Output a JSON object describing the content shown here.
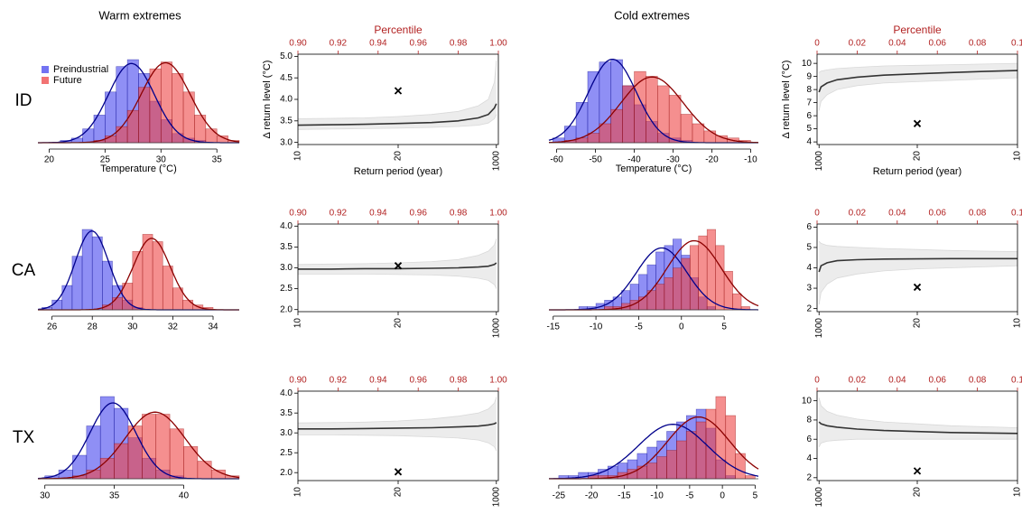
{
  "column_titles": [
    "Warm extremes",
    "Cold extremes"
  ],
  "row_labels": [
    "ID",
    "CA",
    "TX"
  ],
  "chart_data": [
    {
      "type": "histogram",
      "xlabel": "Temperature (°C)",
      "legend": "top-left",
      "bins": [
        19,
        20,
        21,
        22,
        23,
        24,
        25,
        26,
        27,
        28,
        29,
        30,
        31,
        32,
        33,
        34,
        35,
        36,
        37
      ],
      "series": [
        {
          "name": "Preindustrial",
          "color": "#4444ee",
          "line_color": "#00008b",
          "values": [
            0,
            0,
            1,
            2,
            6,
            12,
            22,
            33,
            36,
            30,
            18,
            10,
            4,
            2,
            1,
            0,
            0,
            0
          ]
        },
        {
          "name": "Future",
          "color": "#ee4444",
          "line_color": "#8b0000",
          "values": [
            0,
            0,
            0,
            0,
            0,
            1,
            3,
            7,
            14,
            24,
            32,
            35,
            30,
            22,
            12,
            6,
            3,
            1
          ]
        }
      ],
      "xlim": [
        19,
        37
      ],
      "xticks": [
        20,
        25,
        30,
        35
      ]
    },
    {
      "type": "line",
      "xscale": "upper-tail",
      "ylabel": "Δ return level (°C)",
      "xlabel": "Return period (year)",
      "x2label": "Percentile",
      "x": [
        10,
        12,
        15,
        20,
        30,
        50,
        100,
        200,
        500,
        1000
      ],
      "series": [
        {
          "color": "#d9d9d9",
          "values": [
            3.3,
            3.31,
            3.32,
            3.33,
            3.35,
            3.37,
            3.4,
            3.45,
            3.55,
            3.65
          ]
        },
        {
          "color": "#d9d9d9",
          "values": [
            3.55,
            3.56,
            3.57,
            3.6,
            3.65,
            3.72,
            3.85,
            4.0,
            4.4,
            4.9
          ]
        },
        {
          "color": "#333333",
          "values": [
            3.4,
            3.41,
            3.42,
            3.44,
            3.46,
            3.5,
            3.57,
            3.65,
            3.8,
            3.9
          ]
        }
      ],
      "marker": {
        "x": 20,
        "value": 4.2
      },
      "xticks": [
        10,
        20,
        1000
      ],
      "x2lim": [
        0.9,
        1.0
      ],
      "x2ticks": [
        {
          "value": 0.9,
          "label": "0.90"
        },
        0.92,
        0.94,
        0.96,
        0.98,
        {
          "value": 1.0,
          "label": "1.00"
        }
      ],
      "ylim": [
        2.95,
        5.05
      ],
      "yticks": [
        {
          "value": 3,
          "label": "3.0"
        },
        3.5,
        {
          "value": 4,
          "label": "4.0"
        },
        4.5,
        {
          "value": 5,
          "label": "5.0"
        }
      ]
    },
    {
      "type": "histogram",
      "xlabel": "Temperature (°C)",
      "bins": [
        -61,
        -58,
        -55,
        -52,
        -49,
        -46,
        -43,
        -40,
        -37,
        -34,
        -31,
        -28,
        -25,
        -22,
        -19,
        -16,
        -13,
        -10
      ],
      "series": [
        {
          "color": "#4444ee",
          "line_color": "#00008b",
          "values": [
            2,
            7,
            17,
            30,
            34,
            35,
            24,
            16,
            9,
            4,
            2,
            1,
            0,
            0,
            0,
            0,
            0
          ]
        },
        {
          "color": "#ee4444",
          "line_color": "#8b0000",
          "values": [
            0,
            1,
            2,
            4,
            8,
            14,
            24,
            30,
            28,
            24,
            20,
            12,
            8,
            5,
            3,
            2,
            1
          ]
        }
      ],
      "xlim": [
        -62,
        -8
      ],
      "xticks": [
        -60,
        -50,
        -40,
        -30,
        -20,
        -10
      ]
    },
    {
      "type": "line",
      "xscale": "lower-tail",
      "ylabel": "Δ return level (°C)",
      "xlabel": "Return period (year)",
      "x2label": "Percentile",
      "x": [
        10,
        12,
        15,
        20,
        30,
        50,
        100,
        200,
        500,
        1000
      ],
      "series": [
        {
          "color": "#d9d9d9",
          "values": [
            8.9,
            8.8,
            8.7,
            8.6,
            8.5,
            8.3,
            8.0,
            7.6,
            7.1,
            6.4
          ]
        },
        {
          "color": "#d9d9d9",
          "values": [
            10.0,
            9.95,
            9.9,
            9.85,
            9.8,
            9.7,
            9.6,
            9.5,
            9.4,
            9.3
          ]
        },
        {
          "color": "#333333",
          "values": [
            9.45,
            9.38,
            9.3,
            9.2,
            9.1,
            8.95,
            8.75,
            8.5,
            8.2,
            7.8
          ]
        }
      ],
      "marker": {
        "x": 20,
        "value": 5.4
      },
      "xticks": [
        1000,
        20,
        10
      ],
      "x2lim": [
        0,
        0.1
      ],
      "x2ticks": [
        0,
        0.02,
        0.04,
        0.06,
        0.08,
        0.1
      ],
      "ylim": [
        3.8,
        10.7
      ],
      "yticks": [
        4,
        5,
        6,
        7,
        8,
        9,
        10
      ]
    },
    {
      "type": "histogram",
      "bins": [
        25.5,
        26,
        26.5,
        27,
        27.5,
        28,
        28.5,
        29,
        29.5,
        30,
        30.5,
        31,
        31.5,
        32,
        32.5,
        33,
        33.5,
        34,
        34.5
      ],
      "series": [
        {
          "color": "#4444ee",
          "line_color": "#00008b",
          "values": [
            1,
            4,
            10,
            22,
            33,
            30,
            20,
            10,
            4,
            1,
            0,
            0,
            0,
            0,
            0,
            0,
            0,
            0
          ]
        },
        {
          "color": "#ee4444",
          "line_color": "#8b0000",
          "values": [
            0,
            0,
            0,
            0,
            0,
            0,
            2,
            5,
            11,
            24,
            31,
            28,
            18,
            9,
            4,
            2,
            1,
            0
          ]
        }
      ],
      "xlim": [
        25.3,
        35.3
      ],
      "xticks": [
        26,
        28,
        30,
        32,
        34
      ]
    },
    {
      "type": "line",
      "xscale": "upper-tail",
      "x": [
        10,
        12,
        15,
        20,
        30,
        50,
        100,
        200,
        500,
        1000
      ],
      "series": [
        {
          "color": "#d9d9d9",
          "values": [
            2.85,
            2.85,
            2.85,
            2.84,
            2.83,
            2.8,
            2.75,
            2.7,
            2.6,
            2.5
          ]
        },
        {
          "color": "#d9d9d9",
          "values": [
            3.08,
            3.09,
            3.1,
            3.12,
            3.15,
            3.2,
            3.3,
            3.4,
            3.55,
            3.7
          ]
        },
        {
          "color": "#333333",
          "values": [
            2.97,
            2.97,
            2.98,
            2.98,
            2.99,
            3.0,
            3.02,
            3.04,
            3.08,
            3.12
          ]
        }
      ],
      "marker": {
        "x": 20,
        "value": 3.05
      },
      "xticks": [
        10,
        20,
        1000
      ],
      "x2lim": [
        0.9,
        1.0
      ],
      "x2ticks": [
        {
          "value": 0.9,
          "label": "0.90"
        },
        0.92,
        0.94,
        0.96,
        0.98,
        {
          "value": 1.0,
          "label": "1.00"
        }
      ],
      "ylim": [
        1.95,
        4.05
      ],
      "yticks": [
        {
          "value": 2,
          "label": "2.0"
        },
        2.5,
        {
          "value": 3,
          "label": "3.0"
        },
        3.5,
        {
          "value": 4,
          "label": "4.0"
        }
      ]
    },
    {
      "type": "histogram",
      "bins": [
        -14,
        -13,
        -12,
        -11,
        -10,
        -9,
        -8,
        -7,
        -6,
        -5,
        -4,
        -3,
        -2,
        -1,
        0,
        1,
        2,
        3,
        4,
        5,
        6,
        7,
        8
      ],
      "series": [
        {
          "color": "#4444ee",
          "line_color": "#00008b",
          "values": [
            0,
            0,
            1,
            1,
            2,
            3,
            4,
            6,
            8,
            11,
            14,
            18,
            20,
            22,
            17,
            10,
            4,
            1,
            0,
            0,
            0,
            0
          ]
        },
        {
          "color": "#ee4444",
          "line_color": "#8b0000",
          "values": [
            0,
            0,
            0,
            0,
            0,
            1,
            1,
            2,
            3,
            4,
            6,
            8,
            10,
            13,
            16,
            20,
            23,
            25,
            20,
            12,
            5,
            1
          ]
        }
      ],
      "xlim": [
        -15.5,
        9
      ],
      "xticks": [
        -15,
        -10,
        -5,
        0,
        5
      ]
    },
    {
      "type": "line",
      "xscale": "lower-tail",
      "x": [
        10,
        12,
        15,
        20,
        30,
        50,
        100,
        200,
        500,
        1000
      ],
      "series": [
        {
          "color": "#d9d9d9",
          "values": [
            4.1,
            4.05,
            4.0,
            3.95,
            3.85,
            3.7,
            3.5,
            3.2,
            2.8,
            2.2
          ]
        },
        {
          "color": "#d9d9d9",
          "values": [
            4.8,
            4.82,
            4.85,
            4.9,
            4.95,
            5.0,
            5.05,
            5.1,
            5.2,
            5.3
          ]
        },
        {
          "color": "#333333",
          "values": [
            4.45,
            4.45,
            4.45,
            4.44,
            4.43,
            4.4,
            4.35,
            4.25,
            4.1,
            3.8
          ]
        }
      ],
      "marker": {
        "x": 20,
        "value": 3.05
      },
      "xticks": [
        1000,
        20,
        10
      ],
      "x2lim": [
        0,
        0.1
      ],
      "x2ticks": [
        0,
        0.02,
        0.04,
        0.06,
        0.08,
        0.1
      ],
      "ylim": [
        1.85,
        6.15
      ],
      "yticks": [
        2,
        3,
        4,
        5,
        6
      ]
    },
    {
      "type": "histogram",
      "bins": [
        30,
        31,
        32,
        33,
        34,
        35,
        36,
        37,
        38,
        39,
        40,
        41,
        42,
        43,
        44
      ],
      "series": [
        {
          "color": "#4444ee",
          "line_color": "#00008b",
          "values": [
            1,
            3,
            8,
            18,
            28,
            24,
            14,
            7,
            3,
            1,
            0,
            0,
            0,
            0
          ]
        },
        {
          "color": "#ee4444",
          "line_color": "#8b0000",
          "values": [
            0,
            0,
            1,
            3,
            7,
            12,
            18,
            22,
            22,
            17,
            11,
            6,
            3,
            1
          ]
        }
      ],
      "xlim": [
        29.5,
        44
      ],
      "xticks": [
        30,
        35,
        40
      ]
    },
    {
      "type": "line",
      "xscale": "upper-tail",
      "x": [
        10,
        12,
        15,
        20,
        30,
        50,
        100,
        200,
        500,
        1000
      ],
      "series": [
        {
          "color": "#d9d9d9",
          "values": [
            2.95,
            2.95,
            2.94,
            2.93,
            2.9,
            2.87,
            2.82,
            2.75,
            2.65,
            2.55
          ]
        },
        {
          "color": "#d9d9d9",
          "values": [
            3.25,
            3.26,
            3.27,
            3.3,
            3.35,
            3.42,
            3.5,
            3.6,
            3.75,
            3.9
          ]
        },
        {
          "color": "#333333",
          "values": [
            3.1,
            3.1,
            3.11,
            3.12,
            3.13,
            3.15,
            3.17,
            3.2,
            3.23,
            3.26
          ]
        }
      ],
      "marker": {
        "x": 20,
        "value": 2.02
      },
      "xticks": [
        10,
        20,
        1000
      ],
      "x2lim": [
        0.9,
        1.0
      ],
      "x2ticks": [
        {
          "value": 0.9,
          "label": "0.90"
        },
        0.92,
        0.94,
        0.96,
        0.98,
        {
          "value": 1.0,
          "label": "1.00"
        }
      ],
      "ylim": [
        1.8,
        4.05
      ],
      "yticks": [
        {
          "value": 2,
          "label": "2.0"
        },
        2.5,
        {
          "value": 3,
          "label": "3.0"
        },
        3.5,
        {
          "value": 4,
          "label": "4.0"
        }
      ]
    },
    {
      "type": "histogram",
      "bins": [
        -25,
        -23.5,
        -22,
        -20.5,
        -19,
        -17.5,
        -16,
        -14.5,
        -13,
        -11.5,
        -10,
        -8.5,
        -7,
        -5.5,
        -4,
        -2.5,
        -1,
        0.5,
        2,
        3.5,
        5
      ],
      "series": [
        {
          "color": "#4444ee",
          "line_color": "#00008b",
          "values": [
            1,
            1,
            2,
            2,
            3,
            4,
            5,
            6,
            8,
            10,
            12,
            15,
            18,
            20,
            22,
            16,
            6,
            1,
            0,
            0
          ]
        },
        {
          "color": "#ee4444",
          "line_color": "#8b0000",
          "values": [
            0,
            0,
            0,
            1,
            1,
            1,
            2,
            3,
            4,
            5,
            7,
            9,
            12,
            15,
            18,
            22,
            26,
            20,
            8,
            1
          ]
        }
      ],
      "xlim": [
        -26.5,
        5.5
      ],
      "xticks": [
        -25,
        -20,
        -15,
        -10,
        -5,
        0,
        5
      ]
    },
    {
      "type": "line",
      "xscale": "lower-tail",
      "x": [
        10,
        12,
        15,
        20,
        30,
        50,
        100,
        200,
        500,
        1000
      ],
      "series": [
        {
          "color": "#d9d9d9",
          "values": [
            6.0,
            6.0,
            6.0,
            6.0,
            6.0,
            6.0,
            5.9,
            5.8,
            5.6,
            5.2
          ]
        },
        {
          "color": "#d9d9d9",
          "values": [
            7.2,
            7.3,
            7.4,
            7.6,
            7.8,
            8.1,
            8.5,
            8.9,
            9.5,
            10.3
          ]
        },
        {
          "color": "#333333",
          "values": [
            6.6,
            6.65,
            6.7,
            6.8,
            6.9,
            7.05,
            7.25,
            7.4,
            7.6,
            7.8
          ]
        }
      ],
      "marker": {
        "x": 20,
        "value": 2.7
      },
      "xticks": [
        1000,
        20,
        10
      ],
      "x2lim": [
        0,
        0.1
      ],
      "x2ticks": [
        0,
        0.02,
        0.04,
        0.06,
        0.08,
        0.1
      ],
      "ylim": [
        1.7,
        11
      ],
      "yticks": [
        2,
        4,
        6,
        8,
        10
      ]
    }
  ]
}
